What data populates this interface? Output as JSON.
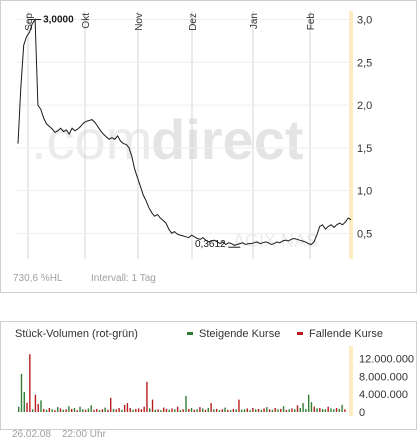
{
  "watermark": {
    "text_prefix": ".com",
    "text_main": "direct",
    "ticker": "AGIX NAS"
  },
  "price_chart": {
    "footer_left": "730,6 %HL",
    "footer_right": "Intervall: 1 Tag"
  },
  "volume_chart": {
    "title": "Stück-Volumen (rot-grün)",
    "legend": [
      {
        "label": "Steigende Kurse",
        "color": "#2e7d32"
      },
      {
        "label": "Fallende Kurse",
        "color": "#b71c1c"
      }
    ]
  },
  "timestamp": {
    "date": "26.02.08",
    "time": "22:00 Uhr"
  },
  "chart_data": [
    {
      "type": "line",
      "x_ticks": [
        "Sep",
        "Okt",
        "Nov",
        "Dez",
        "Jan",
        "Feb"
      ],
      "y_ticks": [
        "3,0",
        "2,5",
        "2,0",
        "1,5",
        "1,0",
        "0,5"
      ],
      "ylim": [
        0.2,
        3.1
      ],
      "annotations": [
        {
          "label": "3,0000",
          "value": 3.0
        },
        {
          "label": "0,3612",
          "value": 0.3612
        }
      ],
      "y": [
        1.55,
        2.2,
        2.7,
        2.8,
        2.85,
        2.95,
        3.0,
        2.0,
        1.95,
        1.85,
        1.78,
        1.75,
        1.72,
        1.68,
        1.7,
        1.73,
        1.69,
        1.71,
        1.66,
        1.73,
        1.7,
        1.72,
        1.75,
        1.79,
        1.81,
        1.82,
        1.83,
        1.8,
        1.75,
        1.7,
        1.66,
        1.63,
        1.6,
        1.62,
        1.6,
        1.64,
        1.58,
        1.55,
        1.54,
        1.5,
        1.4,
        1.25,
        1.15,
        1.05,
        0.95,
        0.88,
        0.8,
        0.74,
        0.7,
        0.72,
        0.68,
        0.65,
        0.62,
        0.55,
        0.5,
        0.52,
        0.49,
        0.48,
        0.47,
        0.46,
        0.45,
        0.48,
        0.46,
        0.44,
        0.43,
        0.45,
        0.42,
        0.4,
        0.41,
        0.42,
        0.4,
        0.38,
        0.4,
        0.37,
        0.39,
        0.38,
        0.36,
        0.37,
        0.38,
        0.39,
        0.37,
        0.38,
        0.38,
        0.39,
        0.4,
        0.38,
        0.39,
        0.4,
        0.39,
        0.37,
        0.38,
        0.4,
        0.39,
        0.41,
        0.42,
        0.41,
        0.43,
        0.44,
        0.43,
        0.42,
        0.41,
        0.4,
        0.38,
        0.37,
        0.4,
        0.48,
        0.58,
        0.6,
        0.55,
        0.58,
        0.6,
        0.57,
        0.6,
        0.62,
        0.6,
        0.63,
        0.68,
        0.66
      ]
    },
    {
      "type": "bar",
      "y_ticks": [
        "12.000.000",
        "8.000.000",
        "4.000.000",
        "0"
      ],
      "ylim": [
        0,
        13500000
      ],
      "values": [
        1200000,
        8600000,
        4500000,
        2100000,
        13000000,
        600000,
        3900000,
        1800000,
        2600000,
        700000,
        500000,
        900000,
        600000,
        400000,
        1100000,
        800000,
        500000,
        600000,
        1300000,
        700000,
        900000,
        400000,
        1200000,
        600000,
        500000,
        800000,
        1500000,
        500000,
        700000,
        400000,
        600000,
        1000000,
        500000,
        3200000,
        700000,
        600000,
        900000,
        500000,
        1600000,
        2000000,
        900000,
        500000,
        700000,
        800000,
        600000,
        1200000,
        6800000,
        800000,
        2800000,
        500000,
        600000,
        400000,
        1000000,
        700000,
        500000,
        800000,
        600000,
        1200000,
        400000,
        600000,
        3600000,
        700000,
        900000,
        500000,
        600000,
        1100000,
        800000,
        500000,
        900000,
        2000000,
        600000,
        700000,
        400000,
        600000,
        1000000,
        500000,
        400000,
        700000,
        600000,
        2800000,
        500000,
        600000,
        800000,
        400000,
        900000,
        600000,
        700000,
        500000,
        800000,
        1100000,
        600000,
        500000,
        900000,
        600000,
        700000,
        1300000,
        500000,
        600000,
        800000,
        600000,
        1500000,
        900000,
        2000000,
        700000,
        3900000,
        2200000,
        1200000,
        800000,
        900000,
        700000,
        600000,
        1200000,
        800000,
        600000,
        900000,
        700000,
        1600000,
        600000
      ],
      "directions": [
        "up",
        "up",
        "up",
        "down",
        "down",
        "up",
        "down",
        "down",
        "up",
        "down",
        "up",
        "down",
        "up",
        "down",
        "up",
        "down",
        "up",
        "down",
        "up",
        "down",
        "up",
        "down",
        "up",
        "up",
        "down",
        "up",
        "up",
        "down",
        "down",
        "up",
        "down",
        "up",
        "down",
        "down",
        "up",
        "down",
        "down",
        "up",
        "down",
        "down",
        "down",
        "up",
        "down",
        "down",
        "down",
        "down",
        "down",
        "up",
        "down",
        "up",
        "down",
        "up",
        "down",
        "down",
        "up",
        "down",
        "up",
        "down",
        "up",
        "down",
        "up",
        "down",
        "up",
        "down",
        "up",
        "down",
        "up",
        "down",
        "up",
        "down",
        "up",
        "down",
        "up",
        "down",
        "up",
        "down",
        "up",
        "down",
        "up",
        "down",
        "up",
        "up",
        "down",
        "up",
        "down",
        "up",
        "down",
        "up",
        "down",
        "up",
        "down",
        "up",
        "down",
        "up",
        "down",
        "up",
        "down",
        "up",
        "down",
        "up",
        "down",
        "up",
        "up",
        "up",
        "up",
        "up",
        "down",
        "up",
        "down",
        "up",
        "up",
        "down",
        "up",
        "up",
        "down",
        "up",
        "up",
        "down"
      ]
    }
  ]
}
